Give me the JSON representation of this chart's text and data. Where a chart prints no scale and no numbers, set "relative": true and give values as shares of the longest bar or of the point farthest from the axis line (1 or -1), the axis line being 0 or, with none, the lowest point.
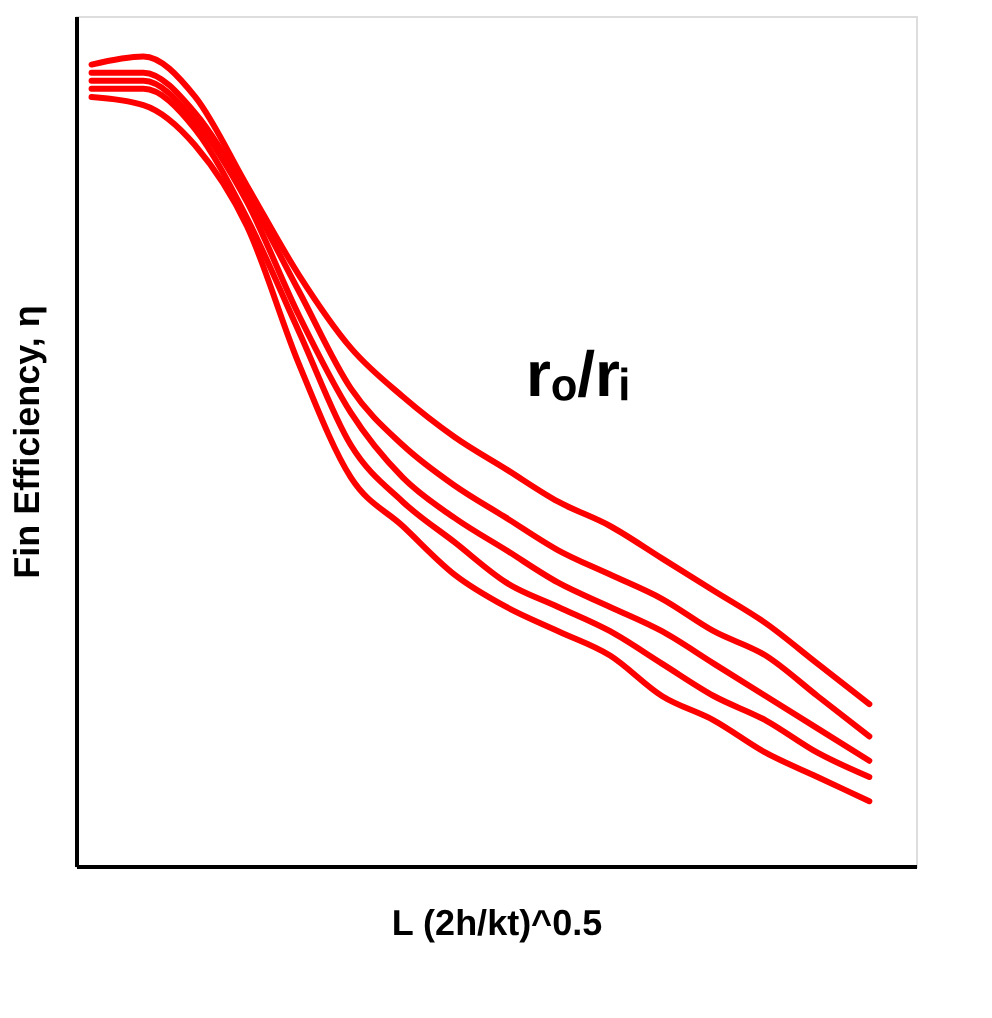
{
  "chart_data": {
    "type": "line",
    "relative": true,
    "xlabel": "L (2h/kt)^0.5",
    "ylabel": "Fin Efficiency, η",
    "annotations": [
      "rₒ/rᵢ"
    ],
    "line_style": "solid",
    "marker": "none",
    "grid": false,
    "legend": false,
    "categories": [
      null,
      null,
      null,
      null,
      null,
      null,
      null,
      null,
      null,
      null,
      null,
      null,
      null,
      null,
      null,
      null
    ],
    "series": [
      {
        "color": "#ff0000",
        "values": [
          0.99,
          1.0,
          0.95,
          0.84,
          0.73,
          0.64,
          0.58,
          0.53,
          0.49,
          0.45,
          0.42,
          0.38,
          0.34,
          0.3,
          0.25,
          0.2
        ]
      },
      {
        "color": "#ff0000",
        "values": [
          0.98,
          0.98,
          0.93,
          0.83,
          0.71,
          0.59,
          0.52,
          0.47,
          0.43,
          0.39,
          0.36,
          0.33,
          0.29,
          0.26,
          0.21,
          0.16
        ]
      },
      {
        "color": "#ff0000",
        "values": [
          0.97,
          0.97,
          0.92,
          0.82,
          0.68,
          0.56,
          0.48,
          0.43,
          0.39,
          0.35,
          0.32,
          0.29,
          0.25,
          0.21,
          0.17,
          0.13
        ]
      },
      {
        "color": "#ff0000",
        "values": [
          0.96,
          0.96,
          0.91,
          0.8,
          0.66,
          0.52,
          0.45,
          0.4,
          0.35,
          0.32,
          0.29,
          0.25,
          0.21,
          0.18,
          0.14,
          0.11
        ]
      },
      {
        "color": "#ff0000",
        "values": [
          0.95,
          0.94,
          0.89,
          0.79,
          0.62,
          0.48,
          0.42,
          0.36,
          0.32,
          0.29,
          0.26,
          0.21,
          0.18,
          0.14,
          0.11,
          0.08
        ]
      }
    ]
  }
}
